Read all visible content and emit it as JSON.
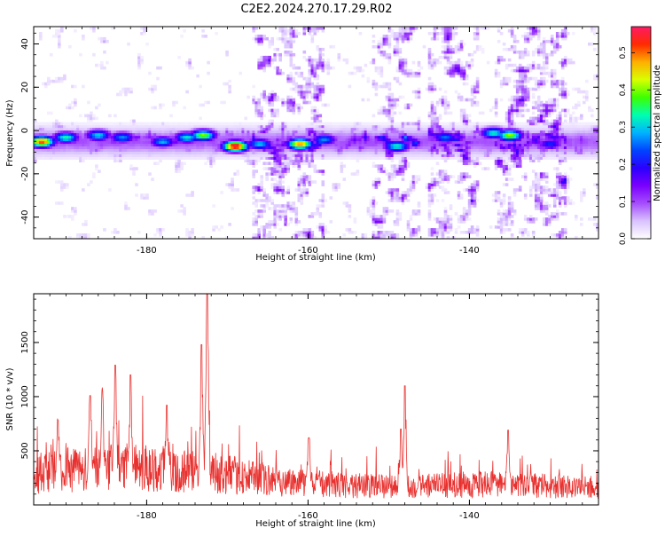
{
  "title": "C2E2.2024.270.17.29.R02",
  "chart_data": [
    {
      "type": "heatmap",
      "xlabel": "Height of straight line (km)",
      "ylabel": "Frequency (Hz)",
      "xlim": [
        -194,
        -124
      ],
      "ylim": [
        -50,
        48
      ],
      "xticks": [
        -180,
        -160,
        -140
      ],
      "yticks": [
        -40,
        -20,
        0,
        20,
        40
      ],
      "colorbar": {
        "label": "Normalized spectral amplitude",
        "range": [
          0.0,
          0.57
        ],
        "ticks": [
          0.0,
          0.1,
          0.2,
          0.3,
          0.4,
          0.5
        ],
        "colormap": [
          "#ffffff",
          "#d9c2ff",
          "#a64dff",
          "#7a00ff",
          "#2a00ff",
          "#0044ff",
          "#00b3ff",
          "#00ffb0",
          "#3dff00",
          "#d9ff00",
          "#ffae00",
          "#ff2a00",
          "#ff1a66"
        ]
      },
      "ridge": {
        "frequency_hz": -5,
        "halfwidth_hz": 6
      },
      "dense_columns_km": [
        [
          -167,
          -158
        ],
        [
          -152,
          -146
        ],
        [
          -145,
          -139
        ],
        [
          -137,
          -128
        ]
      ],
      "peaks": [
        {
          "x": -193,
          "y": -5,
          "value": 0.52
        },
        {
          "x": -190,
          "y": -3,
          "value": 0.34
        },
        {
          "x": -186,
          "y": -2,
          "value": 0.31
        },
        {
          "x": -183,
          "y": -3,
          "value": 0.27
        },
        {
          "x": -178,
          "y": -5,
          "value": 0.29
        },
        {
          "x": -175,
          "y": -3,
          "value": 0.32
        },
        {
          "x": -173,
          "y": -2,
          "value": 0.41
        },
        {
          "x": -169,
          "y": -7,
          "value": 0.57
        },
        {
          "x": -166,
          "y": -6,
          "value": 0.3
        },
        {
          "x": -161,
          "y": -6,
          "value": 0.5
        },
        {
          "x": -158,
          "y": -4,
          "value": 0.27
        },
        {
          "x": -149,
          "y": -7,
          "value": 0.33
        },
        {
          "x": -143,
          "y": -3,
          "value": 0.26
        },
        {
          "x": -137,
          "y": -1,
          "value": 0.33
        },
        {
          "x": -135,
          "y": -2,
          "value": 0.42
        },
        {
          "x": -130,
          "y": -6,
          "value": 0.22
        }
      ]
    },
    {
      "type": "line",
      "xlabel": "Height of straight line (km)",
      "ylabel": "SNR (10 * v/v)",
      "xlim": [
        -194,
        -124
      ],
      "ylim": [
        0,
        1950
      ],
      "xticks": [
        -180,
        -160,
        -140
      ],
      "yticks": [
        500,
        1000,
        1500
      ],
      "color": "#e8312f",
      "baseline": [
        {
          "x": -194,
          "y": 290
        },
        {
          "x": -188,
          "y": 330
        },
        {
          "x": -183,
          "y": 360
        },
        {
          "x": -178,
          "y": 330
        },
        {
          "x": -173,
          "y": 310
        },
        {
          "x": -169,
          "y": 270
        },
        {
          "x": -165,
          "y": 230
        },
        {
          "x": -160,
          "y": 200
        },
        {
          "x": -155,
          "y": 180
        },
        {
          "x": -149,
          "y": 170
        },
        {
          "x": -144,
          "y": 180
        },
        {
          "x": -139,
          "y": 190
        },
        {
          "x": -133,
          "y": 180
        },
        {
          "x": -128,
          "y": 170
        },
        {
          "x": -124,
          "y": 160
        }
      ],
      "peaks": [
        {
          "x": -172.5,
          "y": 1950
        },
        {
          "x": -173.2,
          "y": 1480
        },
        {
          "x": -183.9,
          "y": 1290
        },
        {
          "x": -182.0,
          "y": 1200
        },
        {
          "x": -185.5,
          "y": 1050
        },
        {
          "x": -187.0,
          "y": 1010
        },
        {
          "x": -177.5,
          "y": 920
        },
        {
          "x": -148.0,
          "y": 1100
        },
        {
          "x": -148.5,
          "y": 700
        },
        {
          "x": -135.2,
          "y": 690
        },
        {
          "x": -159.9,
          "y": 620
        },
        {
          "x": -191.0,
          "y": 780
        }
      ]
    }
  ]
}
